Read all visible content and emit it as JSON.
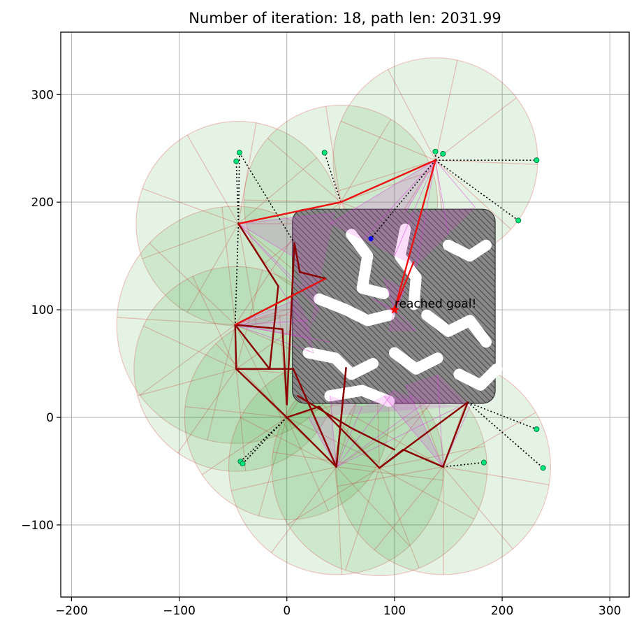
{
  "chart_data": {
    "type": "scatter",
    "title": "Number of iteration: 18, path len: 2031.99",
    "xlabel": "",
    "ylabel": "",
    "xlim": [
      -210,
      318
    ],
    "ylim": [
      -167,
      358
    ],
    "xticks": [
      -200,
      -100,
      0,
      100,
      200,
      300
    ],
    "yticks": [
      -100,
      0,
      100,
      200,
      300
    ],
    "xtick_labels": [
      "−200",
      "−100",
      "0",
      "100",
      "200",
      "300"
    ],
    "ytick_labels": [
      "−100",
      "0",
      "100",
      "200",
      "300"
    ],
    "grid": true,
    "colors": {
      "sector_fill": "#2ca02c",
      "sector_edge": "#d62728",
      "obstacle_fill": "#888888",
      "visibility": "#e040e0",
      "path": "#ee1111",
      "tree": "#8b0000",
      "leaf": "#00e67a",
      "start": "#0000ee",
      "goal": "#ff0000"
    },
    "sector_nodes": [
      {
        "x": -45,
        "y": 180,
        "r": 95
      },
      {
        "x": 50,
        "y": 200,
        "r": 90
      },
      {
        "x": 138,
        "y": 239,
        "r": 95
      },
      {
        "x": -48,
        "y": 86,
        "r": 110
      },
      {
        "x": -47,
        "y": 45,
        "r": 95
      },
      {
        "x": 0,
        "y": 0,
        "r": 95
      },
      {
        "x": 46,
        "y": -46,
        "r": 100
      },
      {
        "x": 86,
        "y": -47,
        "r": 100
      },
      {
        "x": 145,
        "y": -46,
        "r": 100
      }
    ],
    "obstacle_bounds": {
      "x": [
        0,
        200
      ],
      "y": [
        0,
        200
      ]
    },
    "path_points": [
      {
        "x": -45,
        "y": 180
      },
      {
        "x": 50,
        "y": 200
      },
      {
        "x": 138,
        "y": 239
      },
      {
        "x": 100,
        "y": 100
      }
    ],
    "tree_edges": [
      [
        -45,
        180,
        -8,
        122
      ],
      [
        -8,
        122,
        -16,
        45
      ],
      [
        -16,
        45,
        -48,
        86
      ],
      [
        -48,
        86,
        -4,
        82
      ],
      [
        -4,
        82,
        0,
        12
      ],
      [
        0,
        12,
        7,
        162
      ],
      [
        7,
        162,
        12,
        135
      ],
      [
        12,
        135,
        36,
        129
      ],
      [
        36,
        129,
        -48,
        86
      ],
      [
        -48,
        86,
        -47,
        45
      ],
      [
        -47,
        45,
        0,
        0
      ],
      [
        -47,
        45,
        6,
        45
      ],
      [
        6,
        45,
        46,
        -46
      ],
      [
        0,
        0,
        46,
        -46
      ],
      [
        46,
        -46,
        55,
        46
      ],
      [
        55,
        46,
        46,
        -46
      ],
      [
        0,
        0,
        30,
        10
      ],
      [
        30,
        10,
        86,
        -47
      ],
      [
        86,
        -47,
        108,
        -30
      ],
      [
        108,
        -30,
        145,
        -46
      ],
      [
        145,
        -46,
        168,
        14
      ],
      [
        168,
        14,
        86,
        -47
      ],
      [
        10,
        20,
        60,
        -10
      ],
      [
        60,
        -10,
        100,
        -30
      ]
    ],
    "leaves": [
      {
        "x": -44,
        "y": 246
      },
      {
        "x": -47,
        "y": 238
      },
      {
        "x": 35,
        "y": 246
      },
      {
        "x": 138,
        "y": 247
      },
      {
        "x": 145,
        "y": 245
      },
      {
        "x": 232,
        "y": 239
      },
      {
        "x": 215,
        "y": 183
      },
      {
        "x": 232,
        "y": -11
      },
      {
        "x": 238,
        "y": -47
      },
      {
        "x": 183,
        "y": -42
      },
      {
        "x": -43,
        "y": -41
      },
      {
        "x": -41,
        "y": -43
      }
    ],
    "start": {
      "x": 78,
      "y": 166
    },
    "goal": {
      "x": 100,
      "y": 100
    },
    "annotation": "reached goal!"
  }
}
